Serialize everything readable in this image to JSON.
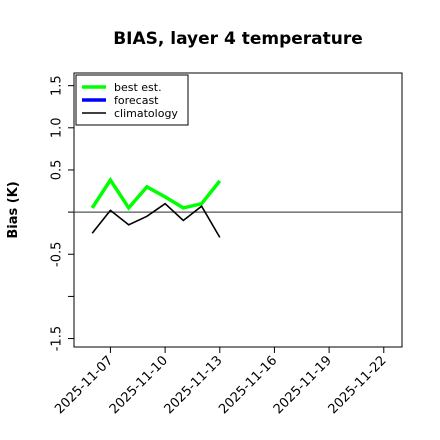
{
  "chart_data": {
    "type": "line",
    "title": "BIAS, layer 4 temperature",
    "xlabel": "",
    "ylabel": "Bias (K)",
    "xlim": [
      "2025-11-05",
      "2025-11-23"
    ],
    "ylim": [
      -1.6,
      1.65
    ],
    "yticks": [
      "-1.5",
      "-1.0",
      "-0.5",
      "0.0",
      "0.5",
      "1.0",
      "1.5"
    ],
    "yticks_shown": [
      "-1.5",
      "",
      "-0.5",
      "",
      "0.5",
      "1.0",
      "1.5"
    ],
    "xticks": [
      "2025-11-07",
      "2025-11-10",
      "2025-11-13",
      "2025-11-16",
      "2025-11-19",
      "2025-11-22"
    ],
    "highlight_xtick": "2025-11-13",
    "highlight_color": "#2e8b2e",
    "reference_line": 0,
    "grid": false,
    "legend_position": "top-left",
    "series": [
      {
        "name": "best est.",
        "color": "#00ff00",
        "x": [
          "2025-11-06",
          "2025-11-07",
          "2025-11-08",
          "2025-11-09",
          "2025-11-10",
          "2025-11-11",
          "2025-11-12",
          "2025-11-13"
        ],
        "values": [
          0.05,
          0.38,
          0.05,
          0.3,
          0.18,
          0.05,
          0.1,
          0.37
        ]
      },
      {
        "name": "forecast",
        "color": "#0000ff",
        "x": [],
        "values": []
      },
      {
        "name": "climatology",
        "color": "#000000",
        "x": [
          "2025-11-06",
          "2025-11-07",
          "2025-11-08",
          "2025-11-09",
          "2025-11-10",
          "2025-11-11",
          "2025-11-12",
          "2025-11-13"
        ],
        "values": [
          -0.25,
          0.02,
          -0.15,
          -0.05,
          0.1,
          -0.1,
          0.07,
          -0.3
        ]
      }
    ]
  }
}
